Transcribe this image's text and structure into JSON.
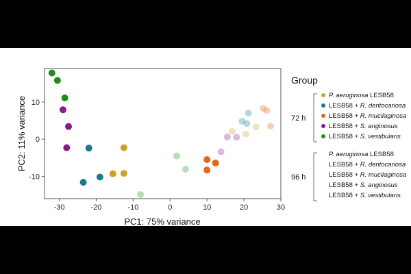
{
  "chart_data": {
    "type": "scatter",
    "xlabel": "PC1: 75% variance",
    "ylabel": "PC2: 11% variance",
    "xlim": [
      -34,
      30
    ],
    "ylim": [
      -16,
      19
    ],
    "xticks": [
      -30,
      -20,
      -10,
      0,
      10,
      20,
      30
    ],
    "xtick_labels": [
      "-30",
      "-20",
      "-10",
      "0",
      "10",
      "20",
      "30"
    ],
    "yticks": [
      -10,
      0,
      10
    ],
    "ytick_labels": [
      "-10",
      "0",
      "10"
    ],
    "grid": false,
    "legend": {
      "title": "Group",
      "placement": "right",
      "time_groups": [
        {
          "label": "72 h",
          "alpha": 1.0,
          "entries": [
            {
              "italic": "P. aeruginosa",
              "plain": " LESB58",
              "color": "#C9A227"
            },
            {
              "plain": "LESB58 + ",
              "italic": "R. dentocariosa",
              "color": "#1B7A8C"
            },
            {
              "plain": "LESB58 + ",
              "italic": "R. mucilaginosa",
              "color": "#E8651A"
            },
            {
              "plain": "LESB58 + ",
              "italic": "S. anginosus",
              "color": "#8B1A8B"
            },
            {
              "plain": "LESB58 + ",
              "italic": "S. vestibularis",
              "color": "#1E8C1E"
            }
          ]
        },
        {
          "label": "96 h",
          "alpha": 0.3,
          "entries": [
            {
              "italic": "P. aeruginosa",
              "plain": " LESB58",
              "color": "#C9A227"
            },
            {
              "plain": "LESB58 + ",
              "italic": "R. dentocariosa",
              "color": "#1B7A8C"
            },
            {
              "plain": "LESB58 + ",
              "italic": "R. mucilaginosa",
              "color": "#E8651A"
            },
            {
              "plain": "LESB58 + ",
              "italic": "S. anginosus",
              "color": "#8B1A8B"
            },
            {
              "plain": "LESB58 + ",
              "italic": "S. vestibularis",
              "color": "#1E8C1E"
            }
          ]
        }
      ]
    },
    "series": [
      {
        "group": "72 h",
        "species": "P. aeruginosa LESB58",
        "color": "#C9A227",
        "alpha": 1.0,
        "points": [
          [
            -12.5,
            -2.3
          ],
          [
            -12.5,
            -9.2
          ],
          [
            -15.5,
            -9.3
          ]
        ]
      },
      {
        "group": "72 h",
        "species": "LESB58 + R. dentocariosa",
        "color": "#1B7A8C",
        "alpha": 1.0,
        "points": [
          [
            -22,
            -2.4
          ],
          [
            -19,
            -10.2
          ],
          [
            -23.5,
            -11.6
          ]
        ]
      },
      {
        "group": "72 h",
        "species": "LESB58 + R. mucilaginosa",
        "color": "#E8651A",
        "alpha": 1.0,
        "points": [
          [
            10,
            -5.5
          ],
          [
            10,
            -8.3
          ],
          [
            12.3,
            -6.4
          ]
        ]
      },
      {
        "group": "72 h",
        "species": "LESB58 + S. anginosus",
        "color": "#8B1A8B",
        "alpha": 1.0,
        "points": [
          [
            -29,
            7.9
          ],
          [
            -27.5,
            3.4
          ],
          [
            -28,
            -2.3
          ]
        ]
      },
      {
        "group": "72 h",
        "species": "LESB58 + S. vestibularis",
        "color": "#1E8C1E",
        "alpha": 1.0,
        "points": [
          [
            -32,
            17.8
          ],
          [
            -30.5,
            15.8
          ],
          [
            -28.5,
            11.1
          ]
        ]
      },
      {
        "group": "96 h",
        "species": "P. aeruginosa LESB58",
        "color": "#C9A227",
        "alpha": 0.3,
        "points": [
          [
            16.8,
            2.1
          ],
          [
            20.5,
            1.4
          ],
          [
            23.3,
            3.3
          ]
        ]
      },
      {
        "group": "96 h",
        "species": "LESB58 + R. dentocariosa",
        "color": "#1B7A8C",
        "alpha": 0.3,
        "points": [
          [
            19.5,
            4.8
          ],
          [
            20.8,
            4.2
          ],
          [
            21.2,
            7.0
          ]
        ]
      },
      {
        "group": "96 h",
        "species": "LESB58 + R. mucilaginosa",
        "color": "#E8651A",
        "alpha": 0.3,
        "points": [
          [
            25.2,
            8.3
          ],
          [
            26.2,
            7.7
          ],
          [
            27.2,
            3.5
          ]
        ]
      },
      {
        "group": "96 h",
        "species": "LESB58 + S. anginosus",
        "color": "#8B1A8B",
        "alpha": 0.3,
        "points": [
          [
            13.8,
            -3.4
          ],
          [
            15.5,
            0.6
          ],
          [
            18.0,
            0.5
          ]
        ]
      },
      {
        "group": "96 h",
        "species": "LESB58 + S. vestibularis",
        "color": "#1E8C1E",
        "alpha": 0.3,
        "points": [
          [
            1.8,
            -4.5
          ],
          [
            4.2,
            -8.1
          ],
          [
            -8.0,
            -14.9
          ]
        ]
      }
    ]
  }
}
